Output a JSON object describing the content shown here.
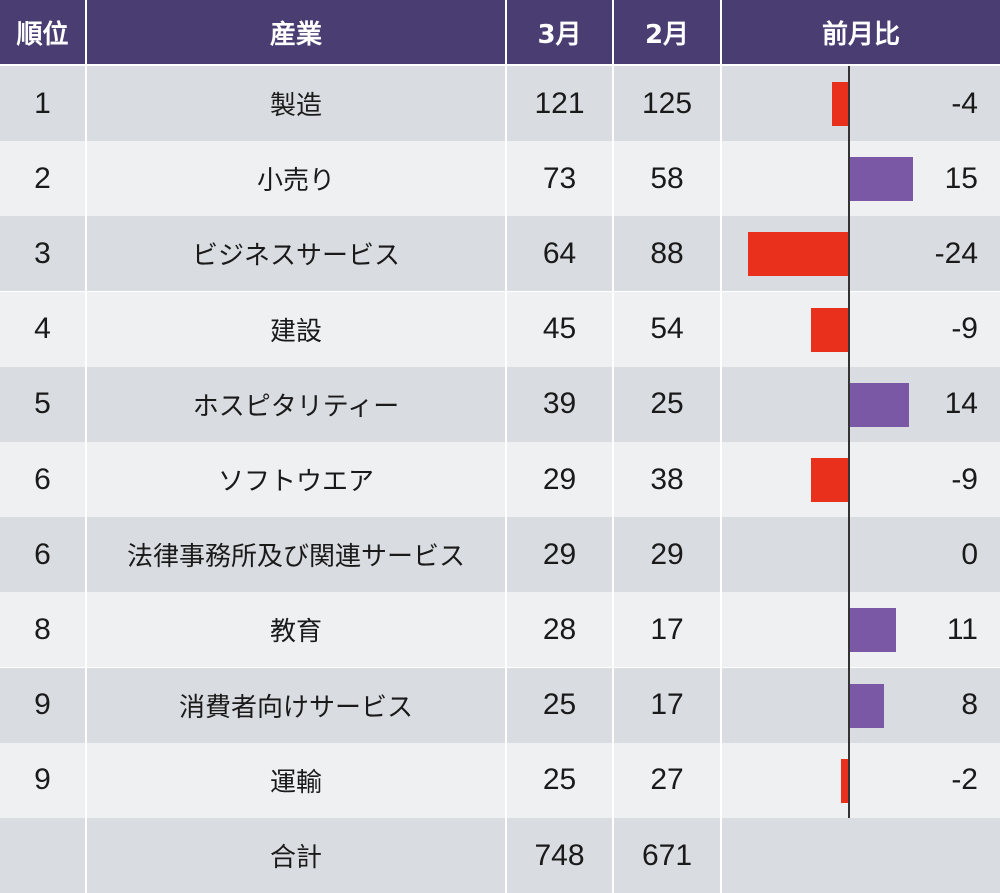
{
  "headers": {
    "rank": "順位",
    "industry": "産業",
    "march": "3月",
    "feb": "2月",
    "diff": "前月比"
  },
  "colors": {
    "header_bg": "#4a3d72",
    "row_odd": "#d9dce0",
    "row_even": "#eef0f2",
    "positive": "#7b58a6",
    "negative": "#e8301c"
  },
  "rows": [
    {
      "rank": "1",
      "industry": "製造",
      "march": "121",
      "feb": "125",
      "diff": "-4"
    },
    {
      "rank": "2",
      "industry": "小売り",
      "march": "73",
      "feb": "58",
      "diff": "15"
    },
    {
      "rank": "3",
      "industry": "ビジネスサービス",
      "march": "64",
      "feb": "88",
      "diff": "-24"
    },
    {
      "rank": "4",
      "industry": "建設",
      "march": "45",
      "feb": "54",
      "diff": "-9"
    },
    {
      "rank": "5",
      "industry": "ホスピタリティー",
      "march": "39",
      "feb": "25",
      "diff": "14"
    },
    {
      "rank": "6",
      "industry": "ソフトウエア",
      "march": "29",
      "feb": "38",
      "diff": "-9"
    },
    {
      "rank": "6",
      "industry": "法律事務所及び関連サービス",
      "march": "29",
      "feb": "29",
      "diff": "0"
    },
    {
      "rank": "8",
      "industry": "教育",
      "march": "28",
      "feb": "17",
      "diff": "11"
    },
    {
      "rank": "9",
      "industry": "消費者向けサービス",
      "march": "25",
      "feb": "17",
      "diff": "8"
    },
    {
      "rank": "9",
      "industry": "運輸",
      "march": "25",
      "feb": "27",
      "diff": "-2"
    }
  ],
  "total": {
    "label": "合計",
    "march": "748",
    "feb": "671"
  },
  "chart_data": {
    "type": "table",
    "title": "",
    "columns": [
      "順位",
      "産業",
      "3月",
      "2月",
      "前月比"
    ],
    "categories": [
      "製造",
      "小売り",
      "ビジネスサービス",
      "建設",
      "ホスピタリティー",
      "ソフトウエア",
      "法律事務所及び関連サービス",
      "教育",
      "消費者向けサービス",
      "運輸"
    ],
    "series": [
      {
        "name": "3月",
        "values": [
          121,
          73,
          64,
          45,
          39,
          29,
          29,
          28,
          25,
          25
        ]
      },
      {
        "name": "2月",
        "values": [
          125,
          58,
          88,
          54,
          25,
          38,
          29,
          17,
          17,
          27
        ]
      },
      {
        "name": "前月比",
        "values": [
          -4,
          15,
          -24,
          -9,
          14,
          -9,
          0,
          11,
          8,
          -2
        ]
      }
    ],
    "totals": {
      "3月": 748,
      "2月": 671
    }
  }
}
